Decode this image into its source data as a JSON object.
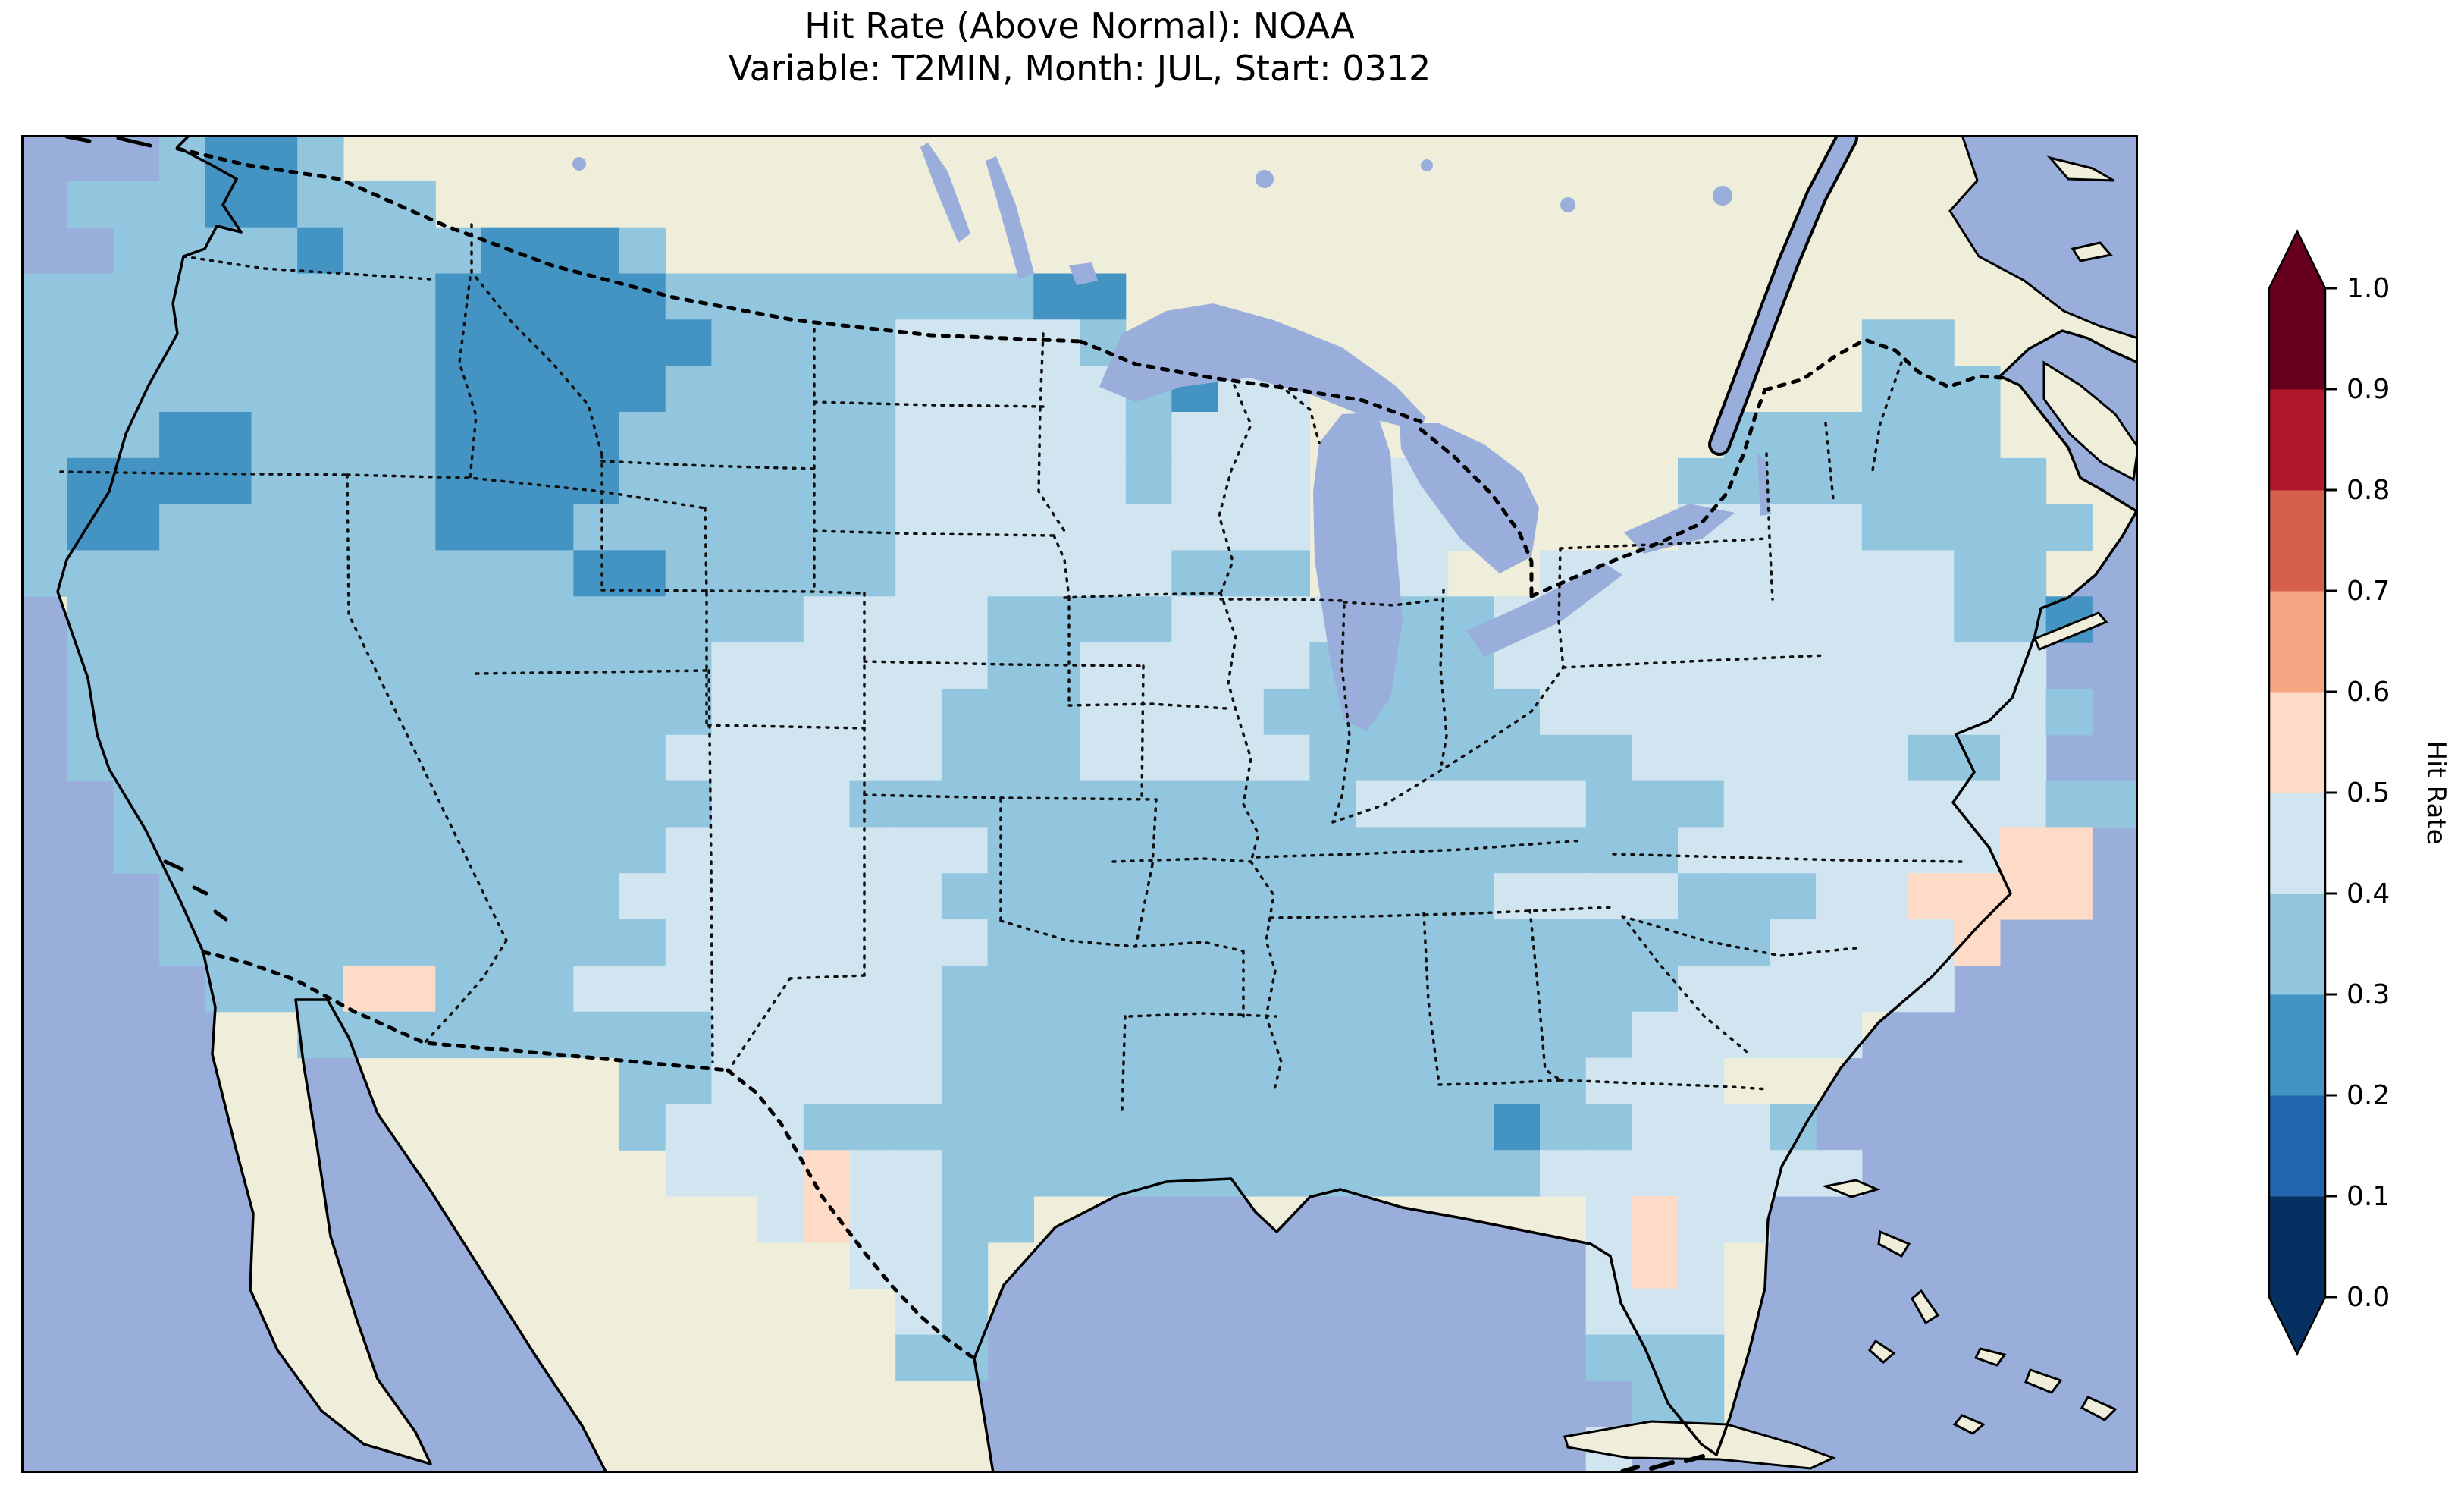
{
  "figure": {
    "title_line1": "Hit Rate (Above Normal): NOAA",
    "title_line2": "Variable: T2MIN, Month: JUL, Start: 0312"
  },
  "chart_data": {
    "type": "heatmap",
    "title": "Hit Rate (Above Normal): NOAA",
    "subtitle": "Variable: T2MIN, Month: JUL, Start: 0312",
    "metric": "Hit Rate (Above Normal)",
    "dataset": "NOAA",
    "variable": "T2MIN",
    "month": "JUL",
    "start": "0312",
    "colorbar": {
      "label": "Hit Rate",
      "range": [
        0.0,
        1.0
      ],
      "ticks": [
        "0.0",
        "0.1",
        "0.2",
        "0.3",
        "0.4",
        "0.5",
        "0.6",
        "0.7",
        "0.8",
        "0.9",
        "1.0"
      ],
      "extend": "both",
      "bin_edges": [
        0.0,
        0.1,
        0.2,
        0.3,
        0.4,
        0.5,
        0.6,
        0.7,
        0.8,
        0.9,
        1.0
      ],
      "bin_colors_low_to_high": [
        "#053061",
        "#2166ac",
        "#4393c3",
        "#92c5de",
        "#d1e5f0",
        "#fddbc7",
        "#f4a582",
        "#d6604d",
        "#b2182b",
        "#67001f"
      ],
      "under_color": "#053061",
      "over_color": "#67001f"
    },
    "map_colors": {
      "ocean_and_lakes": "#99aedb",
      "non_us_land": "#efeedb",
      "coastline": "#000000"
    },
    "grid": {
      "description": "Approximate gridded hit-rate field over CONUS read from the figure; each character is one cell, value = bin midpoint; '.' = outside data domain",
      "cols": 46,
      "rows": 29,
      "cell_values": {
        "2": 0.25,
        "3": 0.35,
        "4": 0.45,
        "5": 0.55
      },
      "rows_data": [
        "...3223.......................................",
        ".33322333.....................................",
        "..333323332223................................",
        "333333333222223333333322......................",
        "333333333222222333344443................33....",
        "3333333332222233333444443244............333...",
        "3332233332222333333444443444.........333333..",
        "3222233332222333333444443444.44.....33333333..",
        "3223333332223333333444444444.444....444433333.",
        "3333333333332233333444444333.44..44444444433..",
        ".33333333333333334444333344443334444444444332.",
        ".3333333333333344444433444440333444444444444.",
        ".33333333333333444443334444300333444444444440.",
        ".3333333333333444444333444443333333444444334..",
        "..33333333333334443333333333344444333444444430",
        "..3333333333334444444333333333333333444444455.",
        "...333333333344444443333333333334444333445555.",
        "...3333333333344444443333333333333333344445...",
        "....33355333444444443333333333333333444444....",
        "......3333333334444433333333333333344444......",
        ".............334444433333333333333444.........",
        ".............34443333333333333332334448.......",
        "..............44454433333333333334444444......",
        "................454433............4544........",
        "..................443.............454.........",
        "...................43.............444.........",
        "...................33.............333.........",
        "...................................33.........",
        "..................................4..........."
      ]
    },
    "summary": "Most of CONUS lies in the 0.3-0.4 bin (light blue); 0.4-0.5 (pale) over the northern Plains, Midwest, Texas and the Mid-Atlantic; 0.2-0.3 (medium blue) over Montana/Wyoming, NE Oregon, northern California coast, northern Minnesota, Long Island and one Georgia cell; sparse 0.5-0.6 (pale pink) cells along the North Carolina coast, central Florida, the Arizona/New Mexico border and west Texas."
  }
}
